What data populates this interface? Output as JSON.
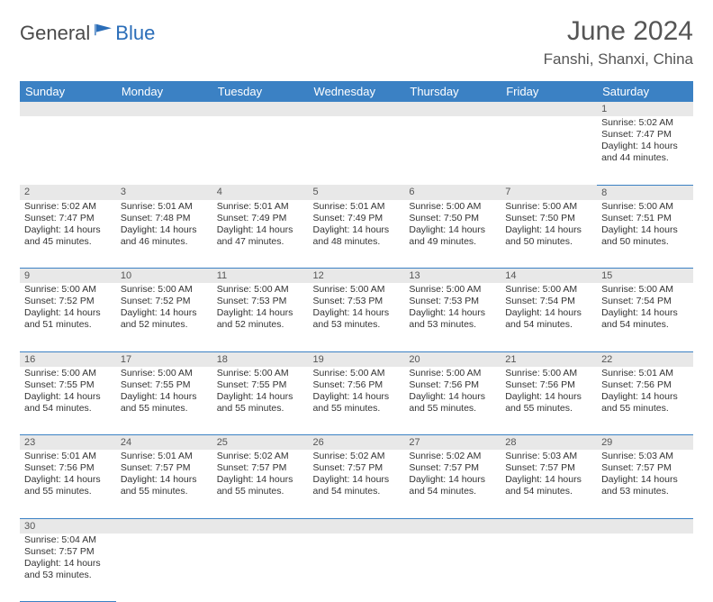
{
  "logo": {
    "text_dark": "General",
    "text_blue": "Blue"
  },
  "title": "June 2024",
  "location": "Fanshi, Shanxi, China",
  "colors": {
    "header_bg": "#3b81c4",
    "header_text": "#ffffff",
    "daynum_bg": "#e8e8e8",
    "border": "#3b81c4",
    "text": "#333333",
    "title_text": "#555555"
  },
  "daynames": [
    "Sunday",
    "Monday",
    "Tuesday",
    "Wednesday",
    "Thursday",
    "Friday",
    "Saturday"
  ],
  "labels": {
    "sunrise": "Sunrise:",
    "sunset": "Sunset:",
    "daylight": "Daylight:"
  },
  "weeks": [
    [
      null,
      null,
      null,
      null,
      null,
      null,
      {
        "n": "1",
        "sr": "5:02 AM",
        "ss": "7:47 PM",
        "dl": "14 hours and 44 minutes."
      }
    ],
    [
      {
        "n": "2",
        "sr": "5:02 AM",
        "ss": "7:47 PM",
        "dl": "14 hours and 45 minutes."
      },
      {
        "n": "3",
        "sr": "5:01 AM",
        "ss": "7:48 PM",
        "dl": "14 hours and 46 minutes."
      },
      {
        "n": "4",
        "sr": "5:01 AM",
        "ss": "7:49 PM",
        "dl": "14 hours and 47 minutes."
      },
      {
        "n": "5",
        "sr": "5:01 AM",
        "ss": "7:49 PM",
        "dl": "14 hours and 48 minutes."
      },
      {
        "n": "6",
        "sr": "5:00 AM",
        "ss": "7:50 PM",
        "dl": "14 hours and 49 minutes."
      },
      {
        "n": "7",
        "sr": "5:00 AM",
        "ss": "7:50 PM",
        "dl": "14 hours and 50 minutes."
      },
      {
        "n": "8",
        "sr": "5:00 AM",
        "ss": "7:51 PM",
        "dl": "14 hours and 50 minutes."
      }
    ],
    [
      {
        "n": "9",
        "sr": "5:00 AM",
        "ss": "7:52 PM",
        "dl": "14 hours and 51 minutes."
      },
      {
        "n": "10",
        "sr": "5:00 AM",
        "ss": "7:52 PM",
        "dl": "14 hours and 52 minutes."
      },
      {
        "n": "11",
        "sr": "5:00 AM",
        "ss": "7:53 PM",
        "dl": "14 hours and 52 minutes."
      },
      {
        "n": "12",
        "sr": "5:00 AM",
        "ss": "7:53 PM",
        "dl": "14 hours and 53 minutes."
      },
      {
        "n": "13",
        "sr": "5:00 AM",
        "ss": "7:53 PM",
        "dl": "14 hours and 53 minutes."
      },
      {
        "n": "14",
        "sr": "5:00 AM",
        "ss": "7:54 PM",
        "dl": "14 hours and 54 minutes."
      },
      {
        "n": "15",
        "sr": "5:00 AM",
        "ss": "7:54 PM",
        "dl": "14 hours and 54 minutes."
      }
    ],
    [
      {
        "n": "16",
        "sr": "5:00 AM",
        "ss": "7:55 PM",
        "dl": "14 hours and 54 minutes."
      },
      {
        "n": "17",
        "sr": "5:00 AM",
        "ss": "7:55 PM",
        "dl": "14 hours and 55 minutes."
      },
      {
        "n": "18",
        "sr": "5:00 AM",
        "ss": "7:55 PM",
        "dl": "14 hours and 55 minutes."
      },
      {
        "n": "19",
        "sr": "5:00 AM",
        "ss": "7:56 PM",
        "dl": "14 hours and 55 minutes."
      },
      {
        "n": "20",
        "sr": "5:00 AM",
        "ss": "7:56 PM",
        "dl": "14 hours and 55 minutes."
      },
      {
        "n": "21",
        "sr": "5:00 AM",
        "ss": "7:56 PM",
        "dl": "14 hours and 55 minutes."
      },
      {
        "n": "22",
        "sr": "5:01 AM",
        "ss": "7:56 PM",
        "dl": "14 hours and 55 minutes."
      }
    ],
    [
      {
        "n": "23",
        "sr": "5:01 AM",
        "ss": "7:56 PM",
        "dl": "14 hours and 55 minutes."
      },
      {
        "n": "24",
        "sr": "5:01 AM",
        "ss": "7:57 PM",
        "dl": "14 hours and 55 minutes."
      },
      {
        "n": "25",
        "sr": "5:02 AM",
        "ss": "7:57 PM",
        "dl": "14 hours and 55 minutes."
      },
      {
        "n": "26",
        "sr": "5:02 AM",
        "ss": "7:57 PM",
        "dl": "14 hours and 54 minutes."
      },
      {
        "n": "27",
        "sr": "5:02 AM",
        "ss": "7:57 PM",
        "dl": "14 hours and 54 minutes."
      },
      {
        "n": "28",
        "sr": "5:03 AM",
        "ss": "7:57 PM",
        "dl": "14 hours and 54 minutes."
      },
      {
        "n": "29",
        "sr": "5:03 AM",
        "ss": "7:57 PM",
        "dl": "14 hours and 53 minutes."
      }
    ],
    [
      {
        "n": "30",
        "sr": "5:04 AM",
        "ss": "7:57 PM",
        "dl": "14 hours and 53 minutes."
      },
      null,
      null,
      null,
      null,
      null,
      null
    ]
  ]
}
